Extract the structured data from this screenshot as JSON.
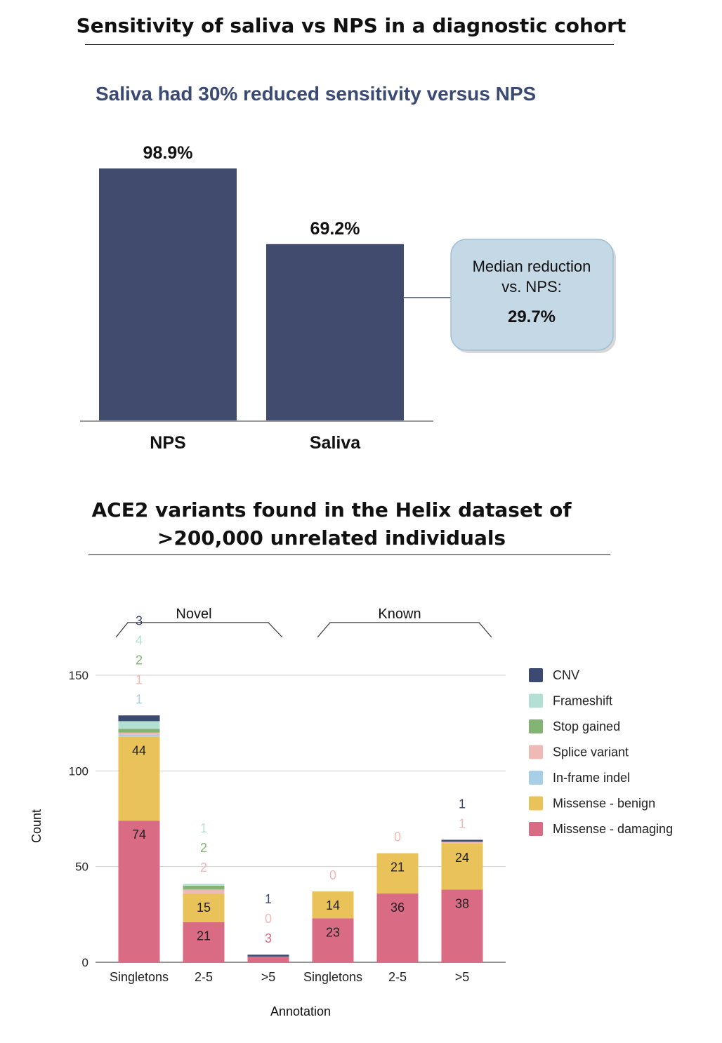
{
  "headings": {
    "top": "Sensitivity of saliva vs NPS in a diagnostic cohort",
    "bottom_line1": "ACE2 variants found in the Helix dataset of",
    "bottom_line2": ">200,000 unrelated individuals"
  },
  "chart_data": [
    {
      "type": "bar",
      "title": "Saliva had 30% reduced sensitivity versus NPS",
      "categories": [
        "NPS",
        "Saliva"
      ],
      "values": [
        98.9,
        69.2
      ],
      "data_labels": [
        "98.9%",
        "69.2%"
      ],
      "ylim": [
        0,
        100
      ],
      "grid": false,
      "colors": {
        "bar": "#404b6e",
        "axis": "#9a9a9a"
      },
      "callout": {
        "line1": "Median reduction",
        "line2": "vs. NPS:",
        "value": "29.7%",
        "colors": {
          "fill": "#c4d8e6",
          "stroke": "#9fbfd6"
        }
      }
    },
    {
      "type": "bar",
      "stacked": true,
      "xlabel": "Annotation",
      "ylabel": "Count",
      "ylim": [
        0,
        160
      ],
      "yticks": [
        0,
        50,
        100,
        150
      ],
      "grid": true,
      "groups": [
        {
          "label": "Novel",
          "categories": [
            0,
            1,
            2
          ]
        },
        {
          "label": "Known",
          "categories": [
            3,
            4,
            5
          ]
        }
      ],
      "categories": [
        "Singletons",
        "2-5",
        ">5",
        "Singletons",
        "2-5",
        ">5"
      ],
      "series": [
        {
          "name": "Missense - damaging",
          "color": "#d96b84",
          "values": [
            74,
            21,
            3,
            23,
            36,
            38
          ]
        },
        {
          "name": "Missense - benign",
          "color": "#e9c25a",
          "values": [
            44,
            15,
            0,
            14,
            21,
            24
          ]
        },
        {
          "name": "In-frame indel",
          "color": "#a9cfe8",
          "values": [
            1,
            0,
            0,
            0,
            0,
            0
          ]
        },
        {
          "name": "Splice variant",
          "color": "#efb9b5",
          "values": [
            1,
            2,
            0,
            0,
            0,
            1
          ]
        },
        {
          "name": "Stop gained",
          "color": "#84b473",
          "values": [
            2,
            2,
            0,
            0,
            0,
            0
          ]
        },
        {
          "name": "Frameshift",
          "color": "#b4e0d4",
          "values": [
            4,
            1,
            0,
            0,
            0,
            0
          ]
        },
        {
          "name": "CNV",
          "color": "#3c4a72",
          "values": [
            3,
            0,
            1,
            0,
            0,
            1
          ]
        }
      ],
      "legend": {
        "position": "right",
        "order": [
          "CNV",
          "Frameshift",
          "Stop gained",
          "Splice variant",
          "In-frame indel",
          "Missense - benign",
          "Missense - damaging"
        ]
      },
      "inside_labels": [
        {
          "category": 0,
          "series": "Missense - damaging",
          "text": "74"
        },
        {
          "category": 0,
          "series": "Missense - benign",
          "text": "44"
        },
        {
          "category": 1,
          "series": "Missense - damaging",
          "text": "21"
        },
        {
          "category": 1,
          "series": "Missense - benign",
          "text": "15"
        },
        {
          "category": 3,
          "series": "Missense - damaging",
          "text": "23"
        },
        {
          "category": 3,
          "series": "Missense - benign",
          "text": "14"
        },
        {
          "category": 4,
          "series": "Missense - damaging",
          "text": "36"
        },
        {
          "category": 4,
          "series": "Missense - benign",
          "text": "21"
        },
        {
          "category": 5,
          "series": "Missense - damaging",
          "text": "38"
        },
        {
          "category": 5,
          "series": "Missense - benign",
          "text": "24"
        }
      ],
      "above_labels": [
        {
          "category": 0,
          "items": [
            {
              "text": "1",
              "series": "In-frame indel"
            },
            {
              "text": "1",
              "series": "Splice variant"
            },
            {
              "text": "2",
              "series": "Stop gained"
            },
            {
              "text": "4",
              "series": "Frameshift"
            },
            {
              "text": "3",
              "series": "CNV"
            }
          ]
        },
        {
          "category": 1,
          "items": [
            {
              "text": "2",
              "series": "Splice variant"
            },
            {
              "text": "2",
              "series": "Stop gained"
            },
            {
              "text": "1",
              "series": "Frameshift"
            }
          ]
        },
        {
          "category": 2,
          "items": [
            {
              "text": "3",
              "series": "Missense - damaging"
            },
            {
              "text": "0",
              "series": "Splice variant"
            },
            {
              "text": "1",
              "series": "CNV"
            }
          ]
        },
        {
          "category": 3,
          "items": [
            {
              "text": "0",
              "series": "Splice variant"
            }
          ]
        },
        {
          "category": 4,
          "items": [
            {
              "text": "0",
              "series": "Splice variant"
            }
          ]
        },
        {
          "category": 5,
          "items": [
            {
              "text": "1",
              "series": "Splice variant"
            },
            {
              "text": "1",
              "series": "CNV"
            }
          ]
        }
      ]
    }
  ]
}
